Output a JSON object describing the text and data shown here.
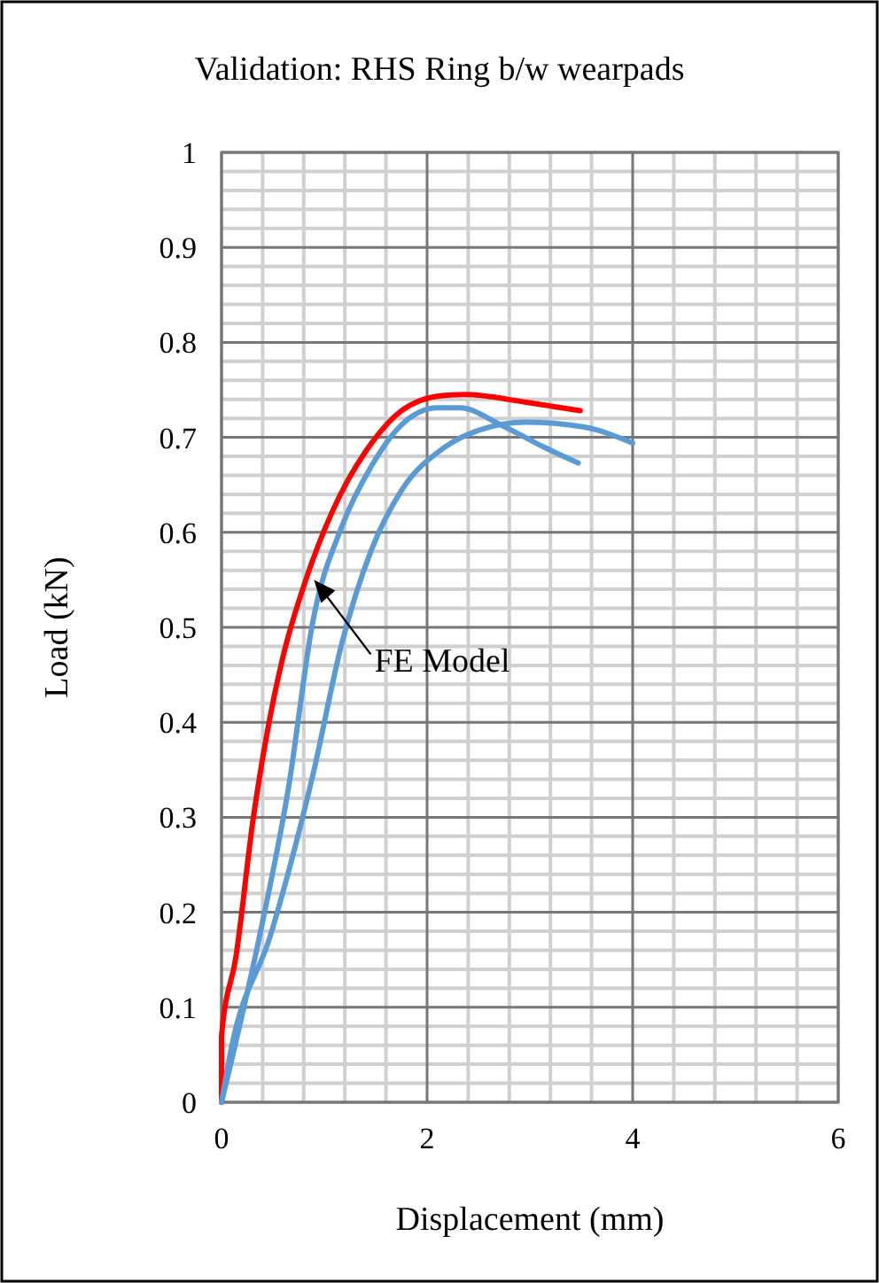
{
  "chart_data": {
    "type": "line",
    "title": "Validation: RHS Ring b/w wearpads",
    "xlabel": "Displacement (mm)",
    "ylabel": "Load (kN)",
    "xlim": [
      0,
      6
    ],
    "xticks": [
      0,
      2,
      4,
      6
    ],
    "ylim": [
      0,
      1
    ],
    "yticks": [
      0,
      0.1,
      0.2,
      0.3,
      0.4,
      0.5,
      0.6,
      0.7,
      0.8,
      0.9,
      1
    ],
    "grid": true,
    "marker": "none",
    "line_style": "solid",
    "annotations": [
      {
        "text": "FE Model",
        "x": 0.9,
        "y": 0.55
      }
    ],
    "series": [
      {
        "color": "#ff0000",
        "x": [
          0,
          0,
          0.14,
          0.31,
          0.48,
          0.6,
          0.82,
          1.07,
          1.46,
          1.75,
          2.15,
          2.37,
          2.96,
          3.49
        ],
        "values": [
          0,
          0.07,
          0.153,
          0.3,
          0.41,
          0.47,
          0.55,
          0.62,
          0.694,
          0.728,
          0.744,
          0.745,
          0.737,
          0.728
        ]
      },
      {
        "color": "#5b9bd5",
        "x": [
          0,
          0.38,
          0.65,
          0.89,
          1.17,
          1.46,
          1.75,
          2.1,
          2.32,
          2.72,
          3.13,
          3.47
        ],
        "values": [
          0,
          0.18,
          0.33,
          0.507,
          0.606,
          0.67,
          0.713,
          0.731,
          0.731,
          0.713,
          0.69,
          0.673
        ]
      },
      {
        "color": "#5b9bd5",
        "x": [
          0,
          0.09,
          0.48,
          0.89,
          1.17,
          1.46,
          1.75,
          2.15,
          2.49,
          2.96,
          3.52,
          4.0
        ],
        "values": [
          0,
          0.054,
          0.177,
          0.345,
          0.483,
          0.582,
          0.644,
          0.688,
          0.707,
          0.716,
          0.711,
          0.694
        ]
      }
    ]
  }
}
